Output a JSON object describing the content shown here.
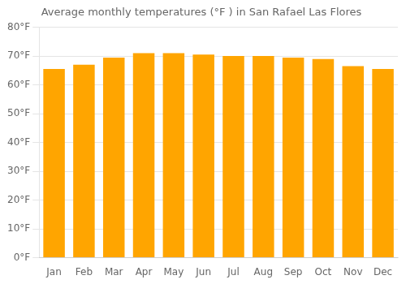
{
  "chart_data": {
    "type": "bar",
    "title": "Average monthly temperatures (°F ) in San Rafael Las Flores",
    "categories": [
      "Jan",
      "Feb",
      "Mar",
      "Apr",
      "May",
      "Jun",
      "Jul",
      "Aug",
      "Sep",
      "Oct",
      "Nov",
      "Dec"
    ],
    "values": [
      65.5,
      67.0,
      69.5,
      71.0,
      71.0,
      70.5,
      70.0,
      70.0,
      69.5,
      69.0,
      66.5,
      65.5
    ],
    "color": "#FFA500",
    "ylim": [
      0,
      80
    ],
    "yticks": [
      {
        "value": 0,
        "label": "0°F"
      },
      {
        "value": 10,
        "label": "10°F"
      },
      {
        "value": 20,
        "label": "20°F"
      },
      {
        "value": 30,
        "label": "30°F"
      },
      {
        "value": 40,
        "label": "40°F"
      },
      {
        "value": 50,
        "label": "50°F"
      },
      {
        "value": 60,
        "label": "60°F"
      },
      {
        "value": 70,
        "label": "70°F"
      },
      {
        "value": 80,
        "label": "80°F"
      }
    ],
    "grid": true
  }
}
